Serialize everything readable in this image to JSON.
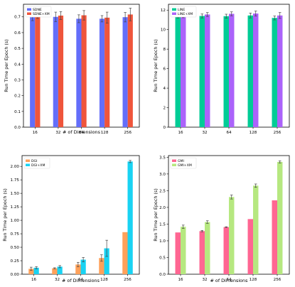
{
  "chart_data": [
    {
      "type": "bar",
      "categories": [
        "16",
        "32",
        "64",
        "128",
        "256"
      ],
      "series": [
        {
          "name": "SDNE",
          "values": [
            0.698,
            0.7,
            0.688,
            0.688,
            0.698
          ],
          "errors": [
            0.022,
            0.03,
            0.025,
            0.02,
            0.03
          ],
          "color": "#636efa"
        },
        {
          "name": "SDNE+XM",
          "values": [
            0.718,
            0.708,
            0.71,
            0.695,
            0.715
          ],
          "errors": [
            0.028,
            0.025,
            0.03,
            0.035,
            0.04
          ],
          "color": "#ef553b"
        }
      ],
      "xlabel": "# of Dimensions",
      "ylabel": "Run Time per Epoch (s)",
      "ylim": [
        0,
        0.78
      ],
      "yticks": [
        "0.0",
        "0.1",
        "0.2",
        "0.3",
        "0.4",
        "0.5",
        "0.6",
        "0.7"
      ],
      "legend": "top-left"
    },
    {
      "type": "bar",
      "categories": [
        "16",
        "32",
        "64",
        "128",
        "256"
      ],
      "series": [
        {
          "name": "LINE",
          "values": [
            11.4,
            11.4,
            11.38,
            11.45,
            11.2
          ],
          "errors": [
            0.2,
            0.2,
            0.2,
            0.25,
            0.2
          ],
          "color": "#00cc96"
        },
        {
          "name": "LINE+XM",
          "values": [
            11.42,
            11.55,
            11.62,
            11.65,
            11.45
          ],
          "errors": [
            0.2,
            0.2,
            0.2,
            0.25,
            0.3
          ],
          "color": "#ab63fa"
        }
      ],
      "xlabel": "",
      "ylabel": "Run Time per Epoch (s)",
      "ylim": [
        0,
        12.6
      ],
      "yticks": [
        "0",
        "2",
        "4",
        "6",
        "8",
        "10",
        "12"
      ],
      "legend": "top-left"
    },
    {
      "type": "bar",
      "categories": [
        "16",
        "32",
        "64",
        "128",
        "256"
      ],
      "series": [
        {
          "name": "DGI",
          "values": [
            0.1,
            0.11,
            0.18,
            0.3,
            0.78
          ],
          "errors": [
            0.03,
            0.01,
            0.04,
            0.06,
            0.0
          ],
          "color": "#ffa15a"
        },
        {
          "name": "DGI+XM",
          "values": [
            0.12,
            0.14,
            0.27,
            0.48,
            2.09
          ],
          "errors": [
            0.02,
            0.02,
            0.04,
            0.15,
            0.02
          ],
          "color": "#19d3f3"
        }
      ],
      "xlabel": "# of Dimensions",
      "ylabel": "Run Time per Epoch (s)",
      "ylim": [
        0,
        2.2
      ],
      "yticks": [
        "0.00",
        "0.25",
        "0.50",
        "0.75",
        "1.00",
        "1.25",
        "1.50",
        "1.75",
        "2.00"
      ],
      "legend": "top-left"
    },
    {
      "type": "bar",
      "categories": [
        "16",
        "32",
        "64",
        "128",
        "256"
      ],
      "series": [
        {
          "name": "GMI",
          "values": [
            1.25,
            1.29,
            1.41,
            1.65,
            2.21
          ],
          "errors": [
            0.0,
            0.02,
            0.01,
            0.0,
            0.0
          ],
          "color": "#ff6692"
        },
        {
          "name": "GMI+XM",
          "values": [
            1.42,
            1.56,
            2.31,
            2.65,
            3.36
          ],
          "errors": [
            0.05,
            0.04,
            0.06,
            0.05,
            0.03
          ],
          "color": "#b6e880"
        }
      ],
      "xlabel": "# of Dimensions",
      "ylabel": "Run Time per Epoch (s)",
      "ylim": [
        0,
        3.55
      ],
      "yticks": [
        "1.0",
        "1.5",
        "2.0",
        "2.5",
        "3.0",
        "3.5",
        "0.0",
        "0.5"
      ],
      "legend": "top-left"
    }
  ]
}
